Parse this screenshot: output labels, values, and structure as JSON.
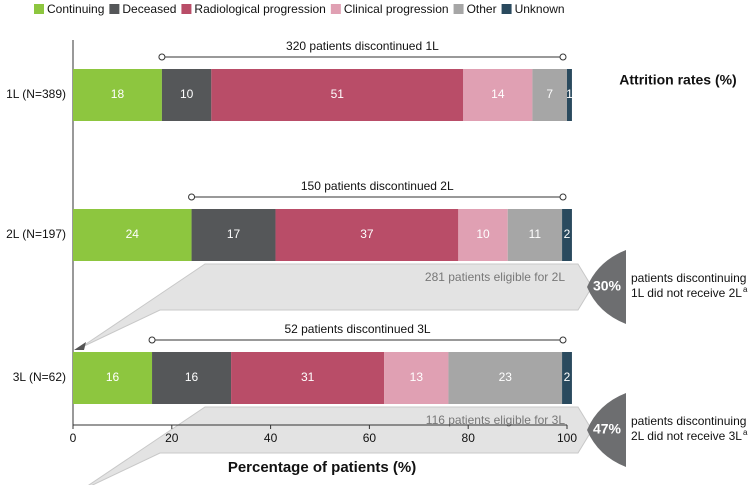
{
  "chart_data": {
    "type": "stacked_bar_h",
    "categories": [
      "1L (N=389)",
      "2L (N=197)",
      "3L (N=62)"
    ],
    "series": [
      {
        "name": "Continuing",
        "color": "#8dc63f",
        "values": [
          18,
          24,
          16
        ]
      },
      {
        "name": "Deceased",
        "color": "#555759",
        "values": [
          10,
          17,
          16
        ]
      },
      {
        "name": "Radiological progression",
        "color": "#b94d68",
        "values": [
          51,
          37,
          31
        ]
      },
      {
        "name": "Clinical progression",
        "color": "#e0a0b3",
        "values": [
          14,
          10,
          13
        ]
      },
      {
        "name": "Other",
        "color": "#a6a6a6",
        "values": [
          7,
          11,
          23
        ]
      },
      {
        "name": "Unknown",
        "color": "#2a4a5e",
        "values": [
          1,
          2,
          2
        ]
      }
    ],
    "xlim": [
      0,
      100
    ],
    "xticks": [
      0,
      20,
      40,
      60,
      80,
      100
    ],
    "xlabel": "Percentage of patients (%)",
    "discontinued": [
      "320 patients discontinued 1L",
      "150 patients discontinued 2L",
      "52 patients discontinued 3L"
    ],
    "eligible": [
      "281 patients eligible for 2L",
      "116 patients eligible for 3L"
    ],
    "attrition_title": "Attrition rates (%)",
    "attrition": [
      {
        "rate": {
          "value": 30,
          "label": "30%"
        },
        "lines": [
          "patients discontinuing",
          "1L did not receive 2L"
        ],
        "note": "a"
      },
      {
        "rate": {
          "value": 47,
          "label": "47%"
        },
        "lines": [
          "patients discontinuing",
          "2L did not receive 3L"
        ],
        "note": "a"
      }
    ]
  }
}
